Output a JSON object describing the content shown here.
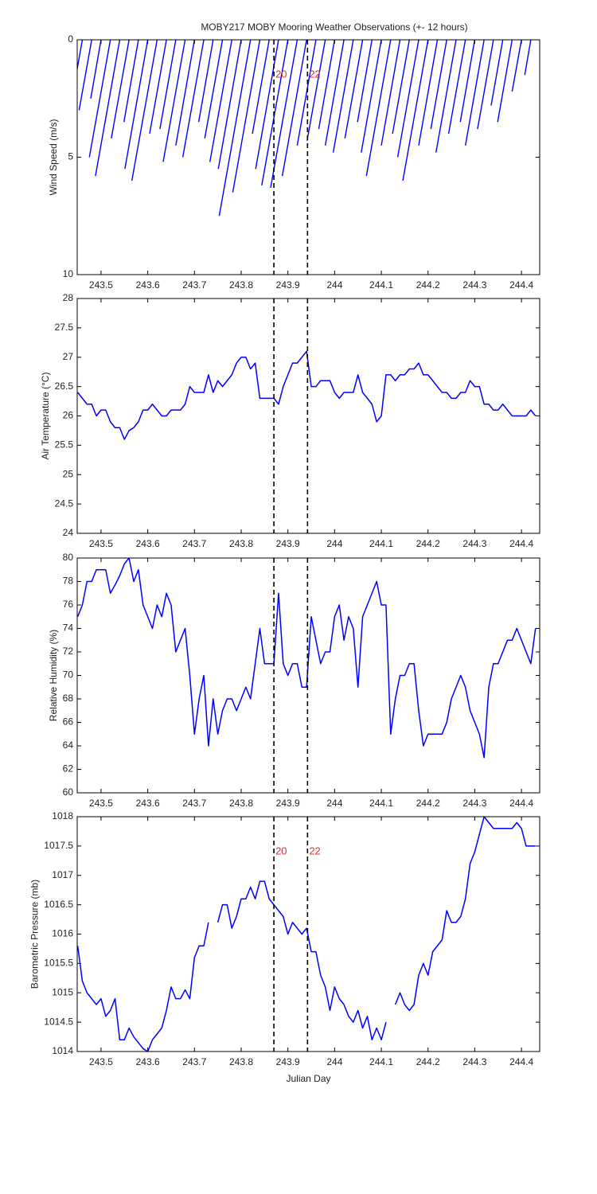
{
  "chart_data": [
    {
      "type": "stick",
      "title": "MOBY217 MOBY Mooring Weather Observations (+- 12 hours)",
      "ylabel": "Wind Speed (m/s)",
      "color": "#0000ff",
      "xlim": [
        243.449,
        244.439
      ],
      "xticks": [
        243.5,
        243.6,
        243.7,
        243.8,
        243.9,
        244,
        244.1,
        244.2,
        244.3,
        244.4
      ],
      "ylim": [
        0,
        10
      ],
      "y_reversed": true,
      "yticks": [
        0,
        5,
        10
      ],
      "vlines": [
        243.87,
        243.942
      ],
      "annotations": [
        {
          "text": "20",
          "x": 243.87,
          "y": 1.5,
          "color": "#e03030"
        },
        {
          "text": "22",
          "x": 243.942,
          "y": 1.5,
          "color": "#e03030"
        }
      ],
      "x": [
        243.46,
        243.48,
        243.5,
        243.52,
        243.54,
        243.56,
        243.58,
        243.6,
        243.62,
        243.64,
        243.66,
        243.68,
        243.7,
        243.72,
        243.74,
        243.76,
        243.78,
        243.8,
        243.82,
        243.84,
        243.86,
        243.88,
        243.9,
        243.92,
        243.94,
        243.96,
        243.98,
        244,
        244.02,
        244.04,
        244.06,
        244.08,
        244.1,
        244.12,
        244.14,
        244.16,
        244.18,
        244.2,
        244.22,
        244.24,
        244.26,
        244.28,
        244.3,
        244.32,
        244.34,
        244.36,
        244.38,
        244.4,
        244.42
      ],
      "x_end": [
        243.42,
        243.453,
        243.478,
        243.475,
        243.488,
        243.522,
        243.549,
        243.551,
        243.566,
        243.604,
        243.626,
        243.633,
        243.66,
        243.675,
        243.709,
        243.722,
        243.733,
        243.751,
        243.753,
        243.782,
        243.824,
        243.831,
        243.844,
        243.863,
        243.888,
        243.92,
        243.941,
        243.966,
        243.98,
        243.997,
        244.022,
        244.049,
        244.057,
        244.068,
        244.1,
        244.124,
        244.135,
        244.146,
        244.18,
        244.206,
        244.217,
        244.244,
        244.269,
        244.28,
        244.306,
        244.335,
        244.349,
        244.38,
        244.407
      ],
      "values": [
        4.5,
        3.0,
        2.5,
        5.0,
        5.8,
        4.2,
        3.5,
        5.5,
        6.0,
        4.0,
        3.8,
        5.2,
        4.5,
        5.0,
        3.5,
        4.2,
        5.2,
        5.5,
        7.5,
        6.5,
        4.0,
        5.5,
        6.2,
        6.3,
        5.8,
        4.5,
        4.3,
        3.8,
        4.5,
        4.8,
        4.2,
        3.5,
        4.8,
        5.8,
        4.5,
        4.0,
        5.0,
        6.0,
        4.5,
        3.8,
        4.8,
        4.0,
        3.5,
        4.5,
        3.8,
        2.8,
        3.5,
        2.2,
        1.5
      ]
    },
    {
      "type": "line",
      "ylabel": "Air Temperature (°C)",
      "color": "#0000ff",
      "xlim": [
        243.449,
        244.439
      ],
      "xticks": [
        243.5,
        243.6,
        243.7,
        243.8,
        243.9,
        244,
        244.1,
        244.2,
        244.3,
        244.4
      ],
      "ylim": [
        24,
        28
      ],
      "yticks": [
        24,
        24.5,
        25,
        25.5,
        26,
        26.5,
        27,
        27.5,
        28
      ],
      "vlines": [
        243.87,
        243.942
      ],
      "x": [
        243.45,
        243.46,
        243.47,
        243.48,
        243.49,
        243.5,
        243.51,
        243.52,
        243.53,
        243.54,
        243.55,
        243.56,
        243.57,
        243.58,
        243.59,
        243.6,
        243.61,
        243.62,
        243.63,
        243.64,
        243.65,
        243.66,
        243.67,
        243.68,
        243.69,
        243.7,
        243.71,
        243.72,
        243.73,
        243.74,
        243.75,
        243.76,
        243.77,
        243.78,
        243.79,
        243.8,
        243.81,
        243.82,
        243.83,
        243.84,
        243.85,
        243.86,
        243.87,
        243.88,
        243.89,
        243.9,
        243.91,
        243.92,
        243.93,
        243.94,
        243.95,
        243.96,
        243.97,
        243.98,
        243.99,
        244,
        244.01,
        244.02,
        244.03,
        244.04,
        244.05,
        244.06,
        244.07,
        244.08,
        244.09,
        244.1,
        244.11,
        244.12,
        244.13,
        244.14,
        244.15,
        244.16,
        244.17,
        244.18,
        244.19,
        244.2,
        244.21,
        244.22,
        244.23,
        244.24,
        244.25,
        244.26,
        244.27,
        244.28,
        244.29,
        244.3,
        244.31,
        244.32,
        244.33,
        244.34,
        244.35,
        244.36,
        244.37,
        244.38,
        244.39,
        244.4,
        244.41,
        244.42,
        244.43
      ],
      "values": [
        26.4,
        26.3,
        26.2,
        26.2,
        26.0,
        26.1,
        26.1,
        25.9,
        25.8,
        25.8,
        25.6,
        25.75,
        25.8,
        25.9,
        26.1,
        26.1,
        26.2,
        26.1,
        26.0,
        26.0,
        26.1,
        26.1,
        26.1,
        26.2,
        26.5,
        26.4,
        26.4,
        26.4,
        26.7,
        26.4,
        26.6,
        26.5,
        26.6,
        26.7,
        26.9,
        27.0,
        27.0,
        26.8,
        26.9,
        26.3,
        26.3,
        26.3,
        26.3,
        26.2,
        26.5,
        26.7,
        26.9,
        26.9,
        27.0,
        27.1,
        26.5,
        26.5,
        26.6,
        26.6,
        26.6,
        26.4,
        26.3,
        26.4,
        26.4,
        26.4,
        26.7,
        26.4,
        26.3,
        26.2,
        25.9,
        26.0,
        26.7,
        26.7,
        26.6,
        26.7,
        26.7,
        26.8,
        26.8,
        26.9,
        26.7,
        26.7,
        26.6,
        26.5,
        26.4,
        26.4,
        26.3,
        26.3,
        26.4,
        26.4,
        26.6,
        26.5,
        26.5,
        26.2,
        26.2,
        26.1,
        26.1,
        26.2,
        26.1,
        26.0,
        26.0,
        26.0,
        26.0,
        26.1,
        26.0
      ]
    },
    {
      "type": "line",
      "ylabel": "Relative Humidity (%)",
      "color": "#0000ff",
      "xlim": [
        243.449,
        244.439
      ],
      "xticks": [
        243.5,
        243.6,
        243.7,
        243.8,
        243.9,
        244,
        244.1,
        244.2,
        244.3,
        244.4
      ],
      "ylim": [
        60,
        80
      ],
      "yticks": [
        60,
        62,
        64,
        66,
        68,
        70,
        72,
        74,
        76,
        78,
        80
      ],
      "vlines": [
        243.87,
        243.942
      ],
      "x": [
        243.45,
        243.46,
        243.47,
        243.48,
        243.49,
        243.5,
        243.51,
        243.52,
        243.53,
        243.54,
        243.55,
        243.56,
        243.57,
        243.58,
        243.59,
        243.6,
        243.61,
        243.62,
        243.63,
        243.64,
        243.65,
        243.66,
        243.67,
        243.68,
        243.69,
        243.7,
        243.71,
        243.72,
        243.73,
        243.74,
        243.75,
        243.76,
        243.77,
        243.78,
        243.79,
        243.8,
        243.81,
        243.82,
        243.83,
        243.84,
        243.85,
        243.86,
        243.87,
        243.88,
        243.89,
        243.9,
        243.91,
        243.92,
        243.93,
        243.94,
        243.95,
        243.96,
        243.97,
        243.98,
        243.99,
        244,
        244.01,
        244.02,
        244.03,
        244.04,
        244.05,
        244.06,
        244.07,
        244.08,
        244.09,
        244.1,
        244.11,
        244.12,
        244.13,
        244.14,
        244.15,
        244.16,
        244.17,
        244.18,
        244.19,
        244.2,
        244.21,
        244.22,
        244.23,
        244.24,
        244.25,
        244.26,
        244.27,
        244.28,
        244.29,
        244.3,
        244.31,
        244.32,
        244.33,
        244.34,
        244.35,
        244.36,
        244.37,
        244.38,
        244.39,
        244.4,
        244.41,
        244.42,
        244.43
      ],
      "values": [
        75,
        76,
        78,
        78,
        79,
        79,
        79,
        77,
        77.7,
        78.5,
        79.5,
        80,
        78,
        79,
        76,
        75,
        74,
        76,
        75,
        77,
        76,
        72,
        73,
        74,
        70,
        65,
        68,
        70,
        64,
        68,
        65,
        67,
        68,
        68,
        67,
        68,
        69,
        68,
        71,
        74,
        71,
        71,
        71,
        77,
        71,
        70,
        71,
        71,
        69,
        69,
        75,
        73,
        71,
        72,
        72,
        75,
        76,
        73,
        75,
        74,
        69,
        75,
        76,
        77,
        78,
        76,
        76,
        65,
        68,
        70,
        70,
        71,
        71,
        67,
        64,
        65,
        65,
        65,
        65,
        66,
        68,
        69,
        70,
        69,
        67,
        66,
        65,
        63,
        69,
        71,
        71,
        72,
        73,
        73,
        74,
        73,
        72,
        71,
        74
      ]
    },
    {
      "type": "line",
      "ylabel": "Barometric Pressure (mb)",
      "xlabel": "Julian Day",
      "color": "#0000ff",
      "xlim": [
        243.449,
        244.439
      ],
      "xticks": [
        243.5,
        243.6,
        243.7,
        243.8,
        243.9,
        244,
        244.1,
        244.2,
        244.3,
        244.4
      ],
      "ylim": [
        1014,
        1018
      ],
      "yticks": [
        1014,
        1014.5,
        1015,
        1015.5,
        1016,
        1016.5,
        1017,
        1017.5,
        1018
      ],
      "vlines": [
        243.87,
        243.942
      ],
      "annotations": [
        {
          "text": "20",
          "x": 243.87,
          "y": 1017.4,
          "color": "#e03030"
        },
        {
          "text": "22",
          "x": 243.942,
          "y": 1017.4,
          "color": "#e03030"
        }
      ],
      "x": [
        243.45,
        243.46,
        243.47,
        243.48,
        243.49,
        243.5,
        243.51,
        243.52,
        243.53,
        243.54,
        243.55,
        243.56,
        243.57,
        243.58,
        243.59,
        243.6,
        243.61,
        243.62,
        243.63,
        243.64,
        243.65,
        243.66,
        243.67,
        243.68,
        243.69,
        243.7,
        243.71,
        243.72,
        243.73,
        243.74,
        243.75,
        243.76,
        243.77,
        243.78,
        243.79,
        243.8,
        243.81,
        243.82,
        243.83,
        243.84,
        243.85,
        243.86,
        243.87,
        243.88,
        243.89,
        243.9,
        243.91,
        243.92,
        243.93,
        243.94,
        243.95,
        243.96,
        243.97,
        243.98,
        243.99,
        244,
        244.01,
        244.02,
        244.03,
        244.04,
        244.05,
        244.06,
        244.07,
        244.08,
        244.09,
        244.1,
        244.11,
        244.12,
        244.13,
        244.14,
        244.15,
        244.16,
        244.17,
        244.18,
        244.19,
        244.2,
        244.21,
        244.22,
        244.23,
        244.24,
        244.25,
        244.26,
        244.27,
        244.28,
        244.29,
        244.3,
        244.31,
        244.32,
        244.33,
        244.34,
        244.35,
        244.36,
        244.37,
        244.38,
        244.39,
        244.4,
        244.41,
        244.42,
        244.43
      ],
      "values": [
        1015.8,
        1015.2,
        1015.0,
        1014.9,
        1014.8,
        1014.9,
        1014.6,
        1014.7,
        1014.9,
        1014.2,
        1014.2,
        1014.4,
        1014.25,
        1014.15,
        1014.05,
        1014.0,
        1014.2,
        1014.3,
        1014.4,
        1014.7,
        1015.1,
        1014.9,
        1014.9,
        1015.05,
        1014.9,
        1015.6,
        1015.8,
        1015.8,
        1016.2,
        null,
        1016.2,
        1016.5,
        1016.5,
        1016.1,
        1016.3,
        1016.6,
        1016.6,
        1016.8,
        1016.6,
        1016.9,
        1016.9,
        1016.6,
        1016.5,
        1016.4,
        1016.3,
        1016.0,
        1016.2,
        1016.1,
        1016.0,
        1016.1,
        1015.7,
        1015.7,
        1015.3,
        1015.1,
        1014.7,
        1015.1,
        1014.9,
        1014.8,
        1014.6,
        1014.5,
        1014.7,
        1014.4,
        1014.6,
        1014.2,
        1014.4,
        1014.2,
        1014.5,
        null,
        1014.8,
        1015.0,
        1014.8,
        1014.7,
        1014.8,
        1015.3,
        1015.5,
        1015.3,
        1015.7,
        1015.8,
        1015.9,
        1016.4,
        1016.2,
        1016.2,
        1016.3,
        1016.6,
        1017.2,
        1017.4,
        1017.7,
        1018.0,
        1017.9,
        1017.8,
        1017.8,
        1017.8,
        1017.8,
        1017.8,
        1017.9,
        1017.8,
        1017.5,
        1017.5,
        1017.5
      ]
    }
  ]
}
